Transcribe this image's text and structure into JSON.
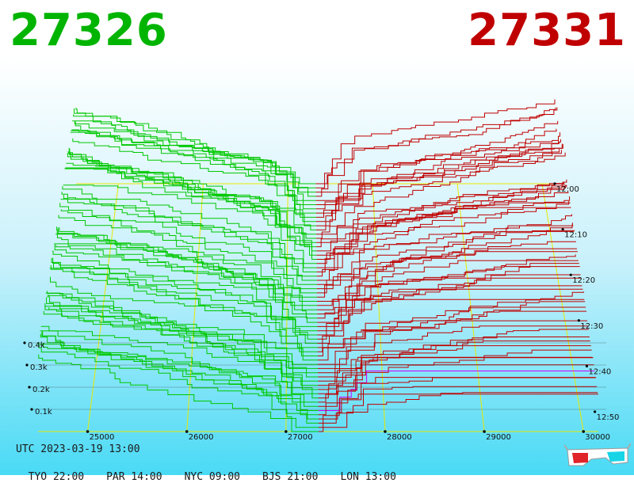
{
  "header": {
    "bid_price": "27326",
    "ask_price": "27331",
    "bid_color": "#00b400",
    "ask_color": "#c00000"
  },
  "footer": {
    "utc_label": "UTC 2023-03-19 13:00",
    "timezones": [
      "TYO 22:00",
      "PAR 14:00",
      "NYC 09:00",
      "BJS 21:00",
      "LON 13:00"
    ],
    "icon": "3d-glasses-icon"
  },
  "chart_data": {
    "type": "line",
    "title": "",
    "xlabel": "",
    "ylabel": "",
    "x_ticks": [
      25000,
      26000,
      27000,
      28000,
      29000,
      30000
    ],
    "x_tick_labels": [
      "25000",
      "26000",
      "27000",
      "28000",
      "29000",
      "30000"
    ],
    "xlim": [
      24500,
      30150
    ],
    "mid_price": 27328,
    "depth_ticks": [
      100,
      200,
      300,
      400
    ],
    "depth_tick_labels": [
      "0.1k",
      "0.2k",
      "0.3k",
      "0.4k"
    ],
    "ylim": [
      0,
      500
    ],
    "time_ticks": [
      "12:00",
      "12:10",
      "12:20",
      "12:30",
      "12:40",
      "12:50"
    ],
    "time_span_minutes": 60,
    "snapshot_count": 60,
    "series": [
      {
        "name": "bids",
        "color": "#00c800",
        "depth_at_edge_range": [
          360,
          470
        ]
      },
      {
        "name": "asks",
        "color": "#c00000",
        "depth_at_edge_range": [
          150,
          500
        ]
      }
    ],
    "latest_ask_color": "#cc00ff",
    "grid": true,
    "grid_color": "#e8e800"
  }
}
